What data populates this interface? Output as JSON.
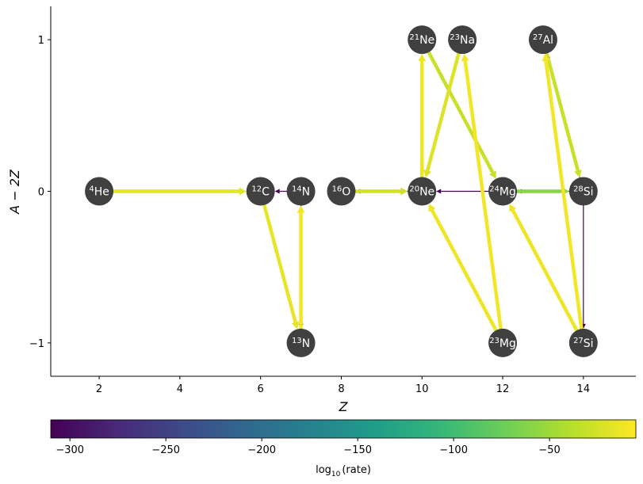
{
  "chart_data": {
    "type": "network",
    "xlabel": "Z",
    "ylabel": "A − 2Z",
    "xlim": [
      0.8,
      15.3
    ],
    "ylim": [
      -1.22,
      1.22
    ],
    "x_ticks": [
      2,
      4,
      6,
      8,
      10,
      12,
      14
    ],
    "x_tick_labels": [
      "2",
      "4",
      "6",
      "8",
      "10",
      "12",
      "14"
    ],
    "y_ticks": [
      -1,
      0,
      1
    ],
    "y_tick_labels": [
      "−1",
      "0",
      "1"
    ],
    "node_color": "#404040",
    "nodes": [
      {
        "id": "he4",
        "mass": "4",
        "symbol": "He",
        "z": 2,
        "n_minus_z": 0
      },
      {
        "id": "c12",
        "mass": "12",
        "symbol": "C",
        "z": 6,
        "n_minus_z": 0
      },
      {
        "id": "n14",
        "mass": "14",
        "symbol": "N",
        "z": 7,
        "n_minus_z": 0
      },
      {
        "id": "o16",
        "mass": "16",
        "symbol": "O",
        "z": 8,
        "n_minus_z": 0
      },
      {
        "id": "ne20",
        "mass": "20",
        "symbol": "Ne",
        "z": 10,
        "n_minus_z": 0
      },
      {
        "id": "mg24",
        "mass": "24",
        "symbol": "Mg",
        "z": 12,
        "n_minus_z": 0
      },
      {
        "id": "si28",
        "mass": "28",
        "symbol": "Si",
        "z": 14,
        "n_minus_z": 0
      },
      {
        "id": "ne21",
        "mass": "21",
        "symbol": "Ne",
        "z": 10,
        "n_minus_z": 1
      },
      {
        "id": "na23",
        "mass": "23",
        "symbol": "Na",
        "z": 11,
        "n_minus_z": 1
      },
      {
        "id": "al27",
        "mass": "27",
        "symbol": "Al",
        "z": 13,
        "n_minus_z": 1
      },
      {
        "id": "n13",
        "mass": "13",
        "symbol": "N",
        "z": 7,
        "n_minus_z": -1
      },
      {
        "id": "mg23",
        "mass": "23",
        "symbol": "Mg",
        "z": 12,
        "n_minus_z": -1
      },
      {
        "id": "si27",
        "mass": "27",
        "symbol": "Si",
        "z": 14,
        "n_minus_z": -1
      }
    ],
    "links": [
      {
        "from": "he4",
        "to": "c12",
        "log_rate": -18
      },
      {
        "from": "c12",
        "to": "n13",
        "log_rate": -15
      },
      {
        "from": "n13",
        "to": "n14",
        "log_rate": -10
      },
      {
        "from": "n14",
        "to": "n13",
        "log_rate": -310
      },
      {
        "from": "n14",
        "to": "c12",
        "log_rate": -310
      },
      {
        "from": "o16",
        "to": "ne20",
        "log_rate": -25
      },
      {
        "from": "ne20",
        "to": "o16",
        "log_rate": -310
      },
      {
        "from": "ne20",
        "to": "ne21",
        "log_rate": -12
      },
      {
        "from": "ne21",
        "to": "mg24",
        "log_rate": -30
      },
      {
        "from": "na23",
        "to": "ne20",
        "log_rate": -20
      },
      {
        "from": "mg23",
        "to": "na23",
        "log_rate": -10
      },
      {
        "from": "mg23",
        "to": "ne20",
        "log_rate": -12
      },
      {
        "from": "mg24",
        "to": "ne20",
        "log_rate": -310
      },
      {
        "from": "mg24",
        "to": "si28",
        "log_rate": -60
      },
      {
        "from": "si28",
        "to": "mg24",
        "log_rate": -310
      },
      {
        "from": "si27",
        "to": "mg24",
        "log_rate": -12
      },
      {
        "from": "si27",
        "to": "al27",
        "log_rate": -10
      },
      {
        "from": "al27",
        "to": "si28",
        "log_rate": -30
      },
      {
        "from": "si28",
        "to": "al27",
        "log_rate": -310
      },
      {
        "from": "si28",
        "to": "si27",
        "log_rate": -310
      }
    ],
    "colorbar": {
      "label": "log₁₀(rate)",
      "label_main": "log",
      "label_sub": "10",
      "label_rest": "(rate)",
      "min": -310,
      "max": -5,
      "ticks": [
        -300,
        -250,
        -200,
        -150,
        -100,
        -50
      ],
      "tick_labels": [
        "−300",
        "−250",
        "−200",
        "−150",
        "−100",
        "−50"
      ],
      "colormap": [
        "#440154",
        "#482878",
        "#3e4989",
        "#31688e",
        "#26828e",
        "#1f9e89",
        "#35b779",
        "#6ece58",
        "#b5de2b",
        "#fde725"
      ]
    }
  }
}
